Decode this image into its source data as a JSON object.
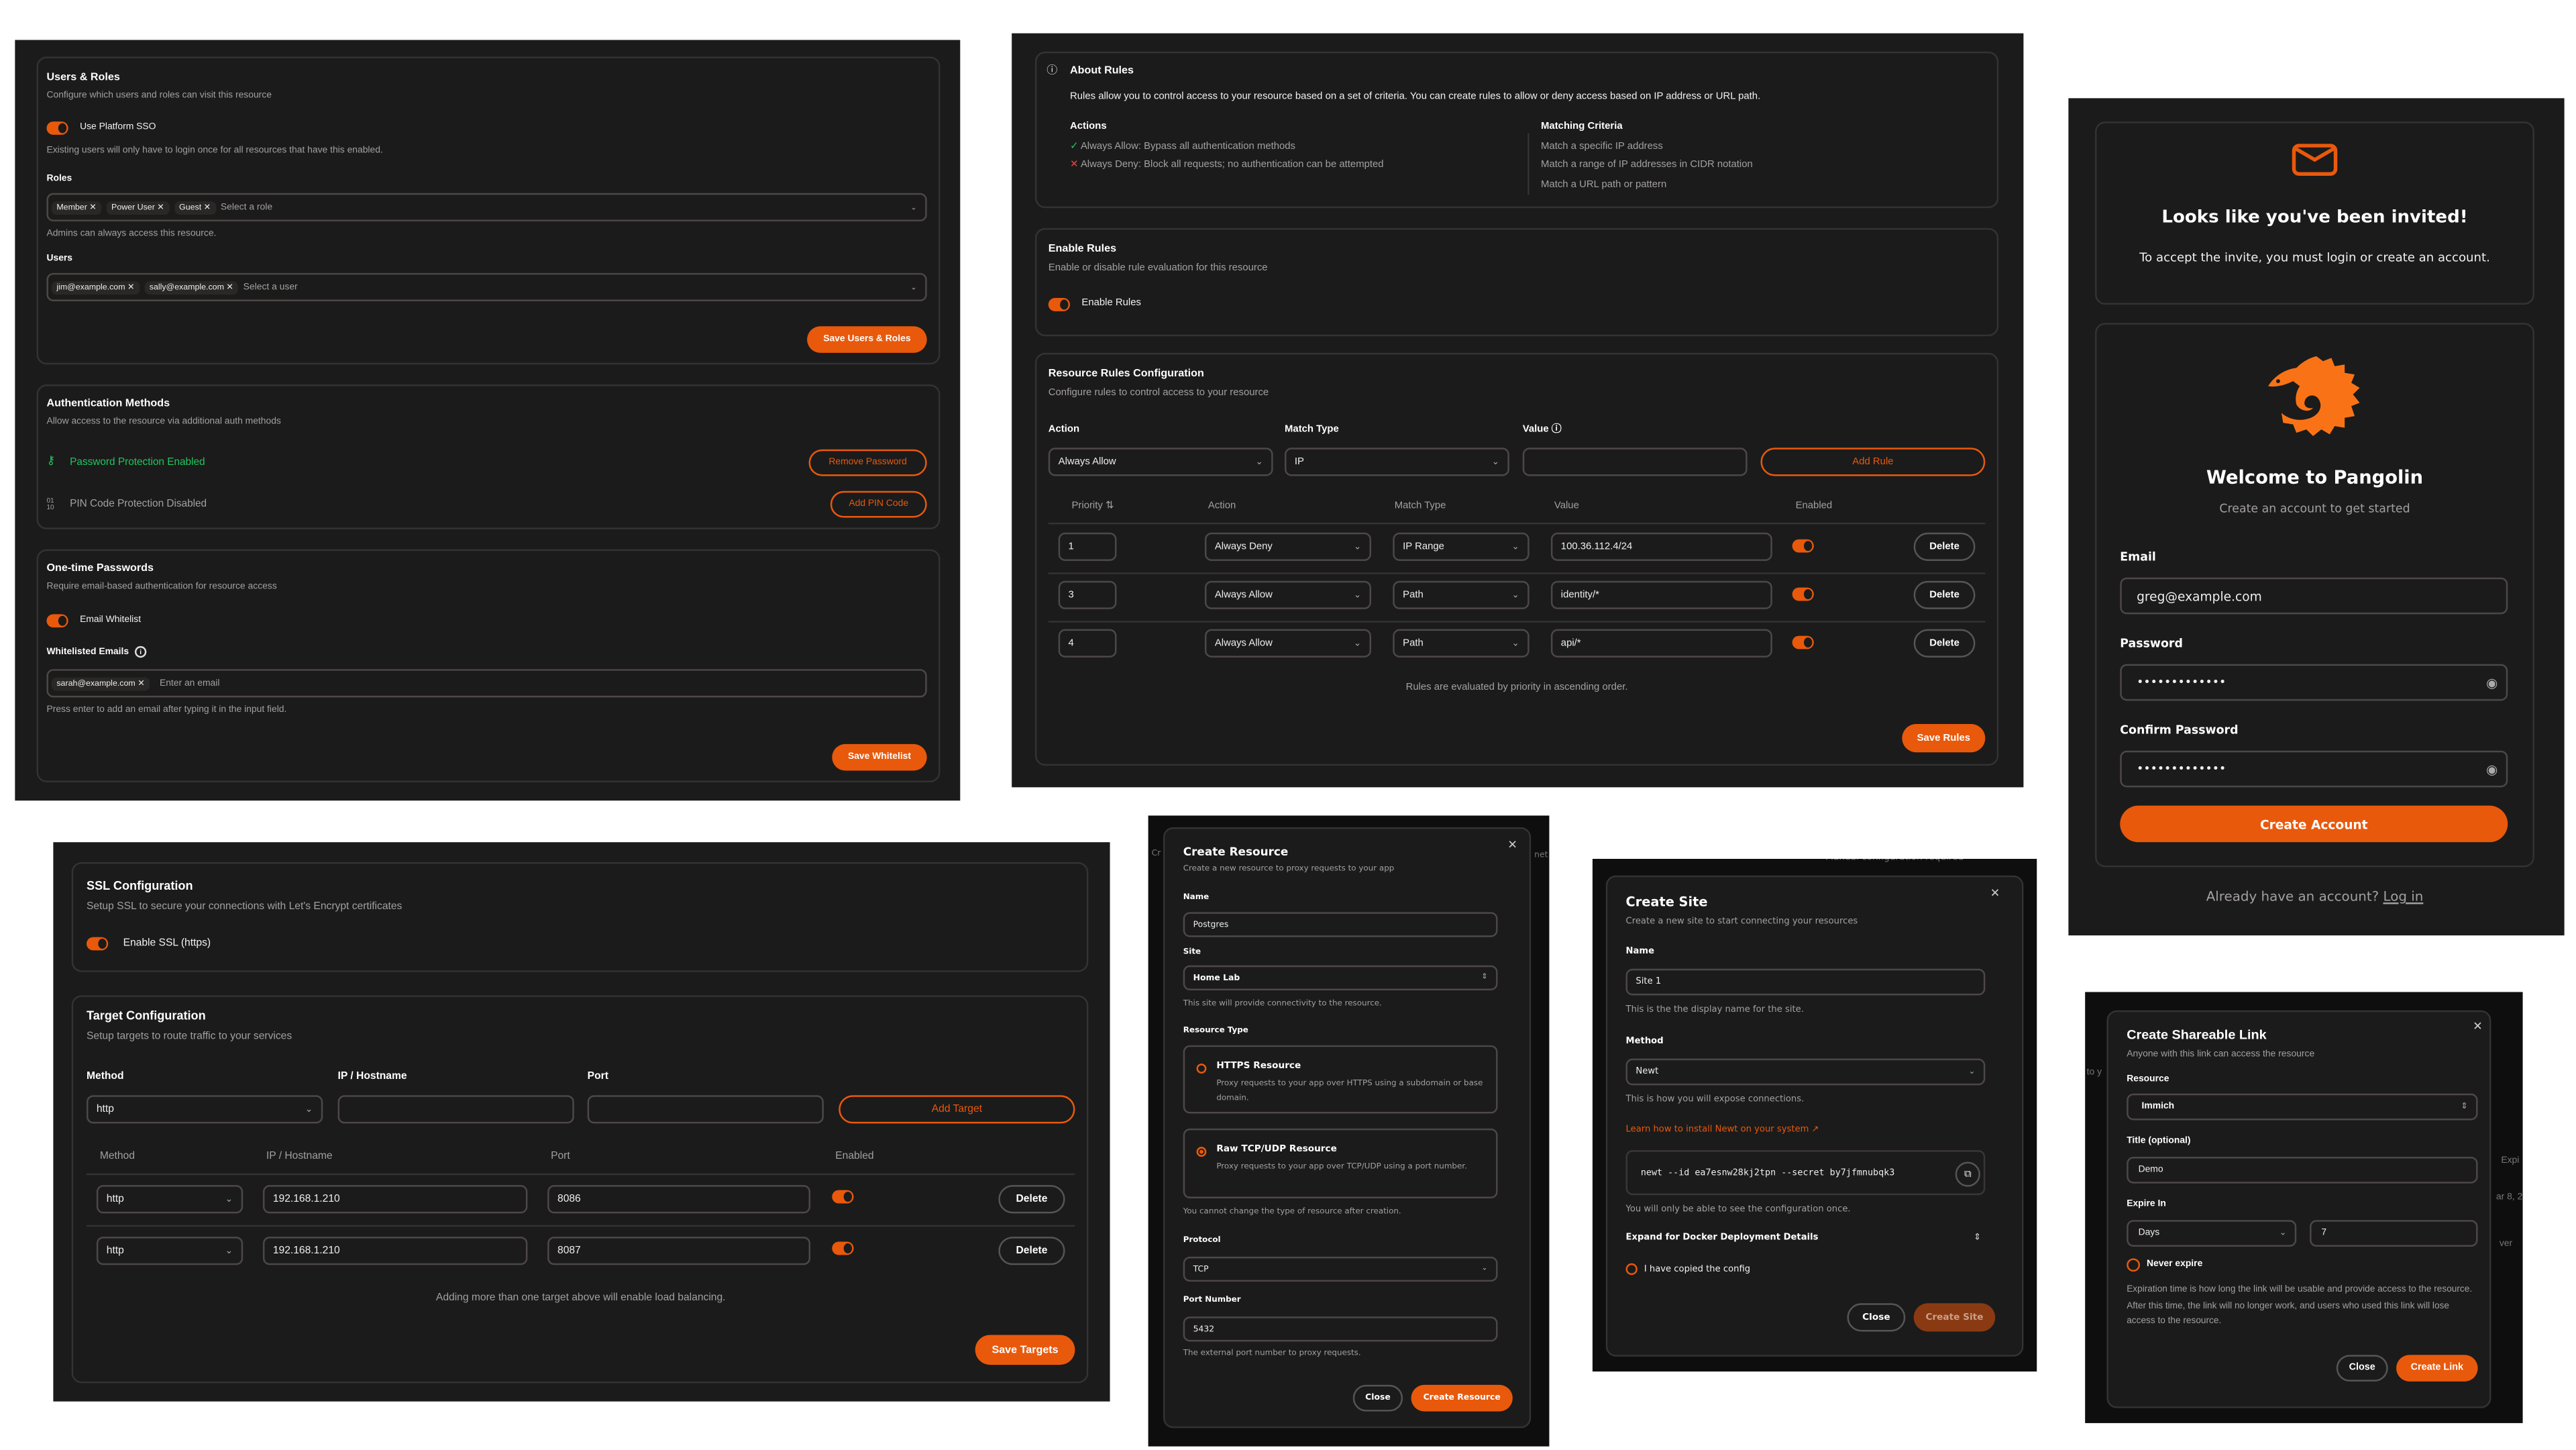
{
  "colors": {
    "accent": "#e8590c",
    "success": "#22c55e",
    "danger": "#ef4444",
    "background": "#1b1b1b"
  },
  "users_roles": {
    "title": "Users & Roles",
    "desc": "Configure which users and roles can visit this resource",
    "sso_label": "Use Platform SSO",
    "sso_enabled": true,
    "sso_note": "Existing users will only have to login once for all resources that have this enabled.",
    "roles_label": "Roles",
    "roles": [
      "Member",
      "Power User",
      "Guest"
    ],
    "roles_placeholder": "Select a role",
    "admins_note": "Admins can always access this resource.",
    "users_label": "Users",
    "users": [
      "jim@example.com",
      "sally@example.com"
    ],
    "users_placeholder": "Select a user",
    "save": "Save Users & Roles"
  },
  "auth_methods": {
    "title": "Authentication Methods",
    "desc": "Allow access to the resource via additional auth methods",
    "password_status": "Password Protection Enabled",
    "remove_password": "Remove Password",
    "pin_status": "PIN Code Protection Disabled",
    "add_pin": "Add PIN Code"
  },
  "otp": {
    "title": "One-time Passwords",
    "desc": "Require email-based authentication for resource access",
    "whitelist_label": "Email Whitelist",
    "whitelist_enabled": true,
    "emails_label": "Whitelisted Emails",
    "emails": [
      "sarah@example.com"
    ],
    "email_placeholder": "Enter an email",
    "note": "Press enter to add an email after typing it in the input field.",
    "save": "Save Whitelist"
  },
  "about_rules": {
    "title": "About Rules",
    "desc": "Rules allow you to control access to your resource based on a set of criteria. You can create rules to allow or deny access based on IP address or URL path.",
    "actions_title": "Actions",
    "actions": [
      "Always Allow: Bypass all authentication methods",
      "Always Deny: Block all requests; no authentication can be attempted"
    ],
    "criteria_title": "Matching Criteria",
    "criteria": [
      "Match a specific IP address",
      "Match a range of IP addresses in CIDR notation",
      "Match a URL path or pattern"
    ]
  },
  "enable_rules": {
    "title": "Enable Rules",
    "desc": "Enable or disable rule evaluation for this resource",
    "toggle_label": "Enable Rules",
    "enabled": true
  },
  "rules_config": {
    "title": "Resource Rules Configuration",
    "desc": "Configure rules to control access to your resource",
    "action_label": "Action",
    "action_value": "Always Allow",
    "match_label": "Match Type",
    "match_value": "IP",
    "value_label": "Value",
    "value_value": "",
    "add": "Add Rule",
    "columns": [
      "Priority",
      "Action",
      "Match Type",
      "Value",
      "Enabled"
    ],
    "rows": [
      {
        "priority": "1",
        "action": "Always Deny",
        "match": "IP Range",
        "value": "100.36.112.4/24",
        "enabled": true,
        "delete": "Delete"
      },
      {
        "priority": "3",
        "action": "Always Allow",
        "match": "Path",
        "value": "identity/*",
        "enabled": true,
        "delete": "Delete"
      },
      {
        "priority": "4",
        "action": "Always Allow",
        "match": "Path",
        "value": "api/*",
        "enabled": true,
        "delete": "Delete"
      }
    ],
    "note": "Rules are evaluated by priority in ascending order.",
    "save": "Save Rules"
  },
  "invite": {
    "title": "Looks like you've been invited!",
    "desc": "To accept the invite, you must login or create an account."
  },
  "signup": {
    "title": "Welcome to Pangolin",
    "subtitle": "Create an account to get started",
    "email_label": "Email",
    "email_value": "greg@example.com",
    "password_label": "Password",
    "password_value": "•••••••••••••",
    "confirm_label": "Confirm Password",
    "confirm_value": "•••••••••••••",
    "submit": "Create Account",
    "login_prompt": "Already have an account?",
    "login_link": "Log in"
  },
  "ssl": {
    "title": "SSL Configuration",
    "desc": "Setup SSL to secure your connections with Let's Encrypt certificates",
    "toggle_label": "Enable SSL (https)",
    "enabled": true
  },
  "targets": {
    "title": "Target Configuration",
    "desc": "Setup targets to route traffic to your services",
    "method_label": "Method",
    "method_value": "http",
    "ip_label": "IP / Hostname",
    "port_label": "Port",
    "add": "Add Target",
    "columns": [
      "Method",
      "IP / Hostname",
      "Port",
      "Enabled"
    ],
    "rows": [
      {
        "method": "http",
        "ip": "192.168.1.210",
        "port": "8086",
        "enabled": true,
        "delete": "Delete"
      },
      {
        "method": "http",
        "ip": "192.168.1.210",
        "port": "8087",
        "enabled": true,
        "delete": "Delete"
      }
    ],
    "note": "Adding more than one target above will enable load balancing.",
    "save": "Save Targets"
  },
  "create_resource": {
    "bg_left": "Cr",
    "bg_right": "net",
    "title": "Create Resource",
    "desc": "Create a new resource to proxy requests to your app",
    "name_label": "Name",
    "name_value": "Postgres",
    "site_label": "Site",
    "site_value": "Home Lab",
    "site_note": "This site will provide connectivity to the resource.",
    "type_label": "Resource Type",
    "types": [
      {
        "title": "HTTPS Resource",
        "desc": "Proxy requests to your app over HTTPS using a subdomain or base domain.",
        "selected": false
      },
      {
        "title": "Raw TCP/UDP Resource",
        "desc": "Proxy requests to your app over TCP/UDP using a port number.",
        "selected": true
      }
    ],
    "type_note": "You cannot change the type of resource after creation.",
    "protocol_label": "Protocol",
    "protocol_value": "TCP",
    "port_label": "Port Number",
    "port_value": "5432",
    "port_note": "The external port number to proxy requests.",
    "close": "Close",
    "submit": "Create Resource"
  },
  "create_site": {
    "bg_top": "Manual configuration required",
    "title": "Create Site",
    "desc": "Create a new site to start connecting your resources",
    "name_label": "Name",
    "name_value": "Site 1",
    "name_note": "This is the the display name for the site.",
    "method_label": "Method",
    "method_value": "Newt",
    "method_note": "This is how you will expose connections.",
    "learn_link": "Learn how to install Newt on your system",
    "command": "newt --id ea7esnw28kj2tpn --secret by7jfmnubqk3",
    "config_note": "You will only be able to see the configuration once.",
    "expand": "Expand for Docker Deployment Details",
    "copied_label": "I have copied the config",
    "copied": false,
    "close": "Close",
    "submit": "Create Site"
  },
  "share_link": {
    "bg_frags": [
      "to y",
      "Expi",
      "ar 8, 2",
      "ver"
    ],
    "title": "Create Shareable Link",
    "desc": "Anyone with this link can access the resource",
    "resource_label": "Resource",
    "resource_value": "Immich",
    "title_label": "Title (optional)",
    "title_value": "Demo",
    "expire_label": "Expire In",
    "unit_value": "Days",
    "amount_value": "7",
    "never_label": "Never expire",
    "never": false,
    "note": "Expiration time is how long the link will be usable and provide access to the resource. After this time, the link will no longer work, and users who used this link will lose access to the resource.",
    "close": "Close",
    "submit": "Create Link"
  }
}
